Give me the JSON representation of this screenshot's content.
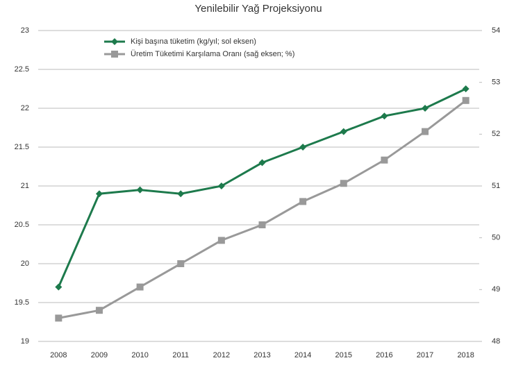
{
  "chart_data": {
    "type": "line",
    "title": "Yenilebilir Yağ Projeksiyonu",
    "categories": [
      "2008",
      "2009",
      "2010",
      "2011",
      "2012",
      "2013",
      "2014",
      "2015",
      "2016",
      "2017",
      "2018"
    ],
    "series": [
      {
        "name": "Kişi başına tüketim (kg/yıl; sol eksen)",
        "color": "#1d7a4c",
        "marker": "diamond",
        "values": [
          19.7,
          20.9,
          20.95,
          20.9,
          21.0,
          21.3,
          21.5,
          21.7,
          21.9,
          22.0,
          22.25
        ]
      },
      {
        "name": "Üretim Tüketimi Karşılama Oranı (sağ eksen; %)",
        "color": "#999999",
        "marker": "square",
        "axis": "y2",
        "values": [
          48.45,
          48.6,
          49.05,
          49.5,
          49.95,
          50.25,
          50.7,
          51.05,
          51.5,
          52.05,
          52.65
        ]
      }
    ],
    "ylim": [
      19,
      23
    ],
    "yticks": [
      19,
      19.5,
      20,
      20.5,
      21,
      21.5,
      22,
      22.5,
      23
    ],
    "y2lim": [
      48,
      54
    ],
    "y2ticks": [
      48,
      49,
      50,
      51,
      52,
      53,
      54
    ],
    "grid": true,
    "legend": "top"
  }
}
